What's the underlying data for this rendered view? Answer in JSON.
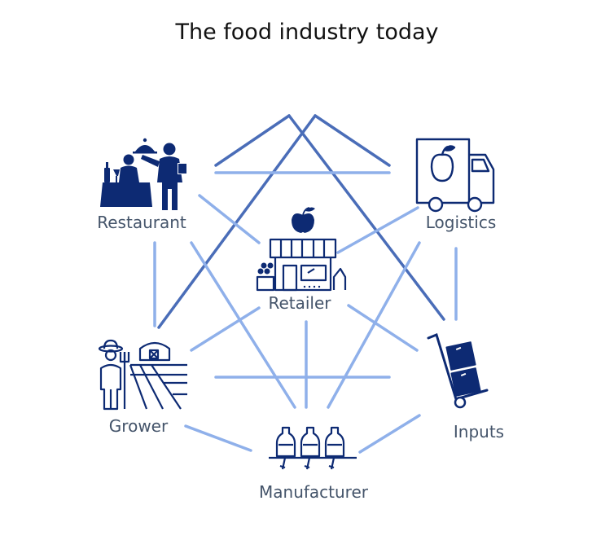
{
  "title": "The food industry today",
  "nodes": {
    "restaurant": "Restaurant",
    "logistics": "Logistics",
    "retailer": "Retailer",
    "grower": "Grower",
    "inputs": "Inputs",
    "manufacturer": "Manufacturer"
  },
  "colors": {
    "dark_line": "#4a6db8",
    "light_line": "#8fb0ea",
    "icon": "#0d2a73",
    "label": "#44546a"
  }
}
